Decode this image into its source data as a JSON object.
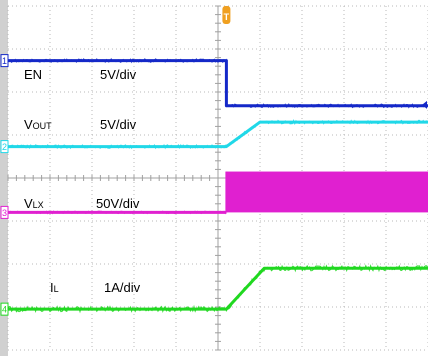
{
  "chart_data": {
    "type": "line",
    "title": "",
    "xlabel": "",
    "ylabel": "",
    "grid": true,
    "x_divisions": 10,
    "y_divisions": 8,
    "trigger_marker": "T",
    "trigger_x_div": 5.2,
    "series": [
      {
        "id": "ch1",
        "channel": "1",
        "name_main": "EN",
        "name_sub": "",
        "scale": "5V/div",
        "color": "#1428c8",
        "points": [
          [
            0,
            1.27
          ],
          [
            5.2,
            1.27
          ],
          [
            5.2,
            2.32
          ],
          [
            10,
            2.32
          ]
        ],
        "noise_div": 0.04
      },
      {
        "id": "ch2",
        "channel": "2",
        "name_main": "V",
        "name_sub": "OUT",
        "scale": "5V/div",
        "color": "#20d8e8",
        "points": [
          [
            0,
            3.27
          ],
          [
            5.2,
            3.27
          ],
          [
            6.0,
            2.7
          ],
          [
            10,
            2.7
          ]
        ],
        "noise_div": 0.04
      },
      {
        "id": "ch3",
        "channel": "3",
        "name_main": "V",
        "name_sub": "LX",
        "scale": "50V/div",
        "color": "#e020d0",
        "points": [
          [
            0,
            4.8
          ],
          [
            5.2,
            4.8
          ]
        ],
        "band": [
          5.2,
          10,
          3.85,
          4.8
        ],
        "noise_div": 0.03
      },
      {
        "id": "ch4",
        "channel": "4",
        "name_main": "I",
        "name_sub": "L",
        "scale": "1A/div",
        "color": "#20d820",
        "points": [
          [
            0,
            7.05
          ],
          [
            5.2,
            7.05
          ],
          [
            6.1,
            6.1
          ],
          [
            10,
            6.1
          ]
        ],
        "noise_div": 0.06
      }
    ]
  }
}
